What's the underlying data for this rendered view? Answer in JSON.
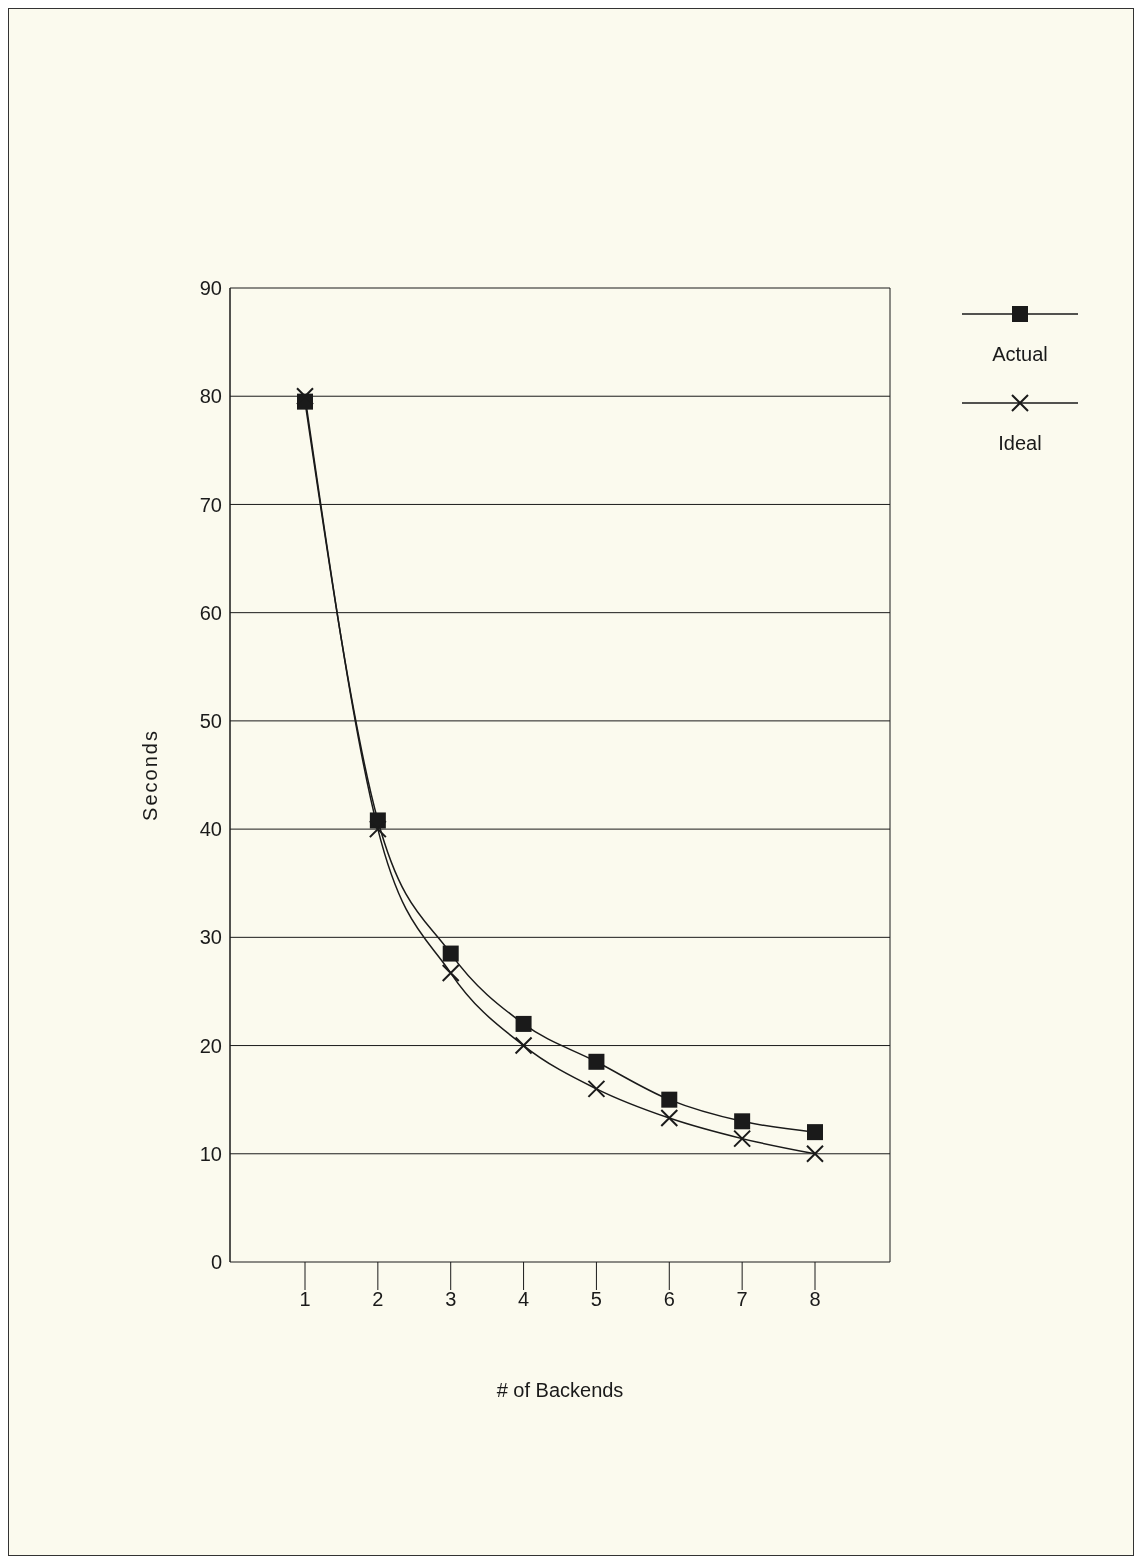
{
  "chart_data": {
    "type": "line",
    "xlabel": "# of Backends",
    "ylabel": "Seconds",
    "categories": [
      "1",
      "2",
      "3",
      "4",
      "5",
      "6",
      "7",
      "8"
    ],
    "series": [
      {
        "name": "Actual",
        "color": "#1a1a1a",
        "marker": "square",
        "values": [
          79.5,
          40.8,
          28.5,
          22,
          18.5,
          15,
          13,
          12
        ]
      },
      {
        "name": "Ideal",
        "color": "#1a1a1a",
        "marker": "cross",
        "values": [
          80,
          40,
          26.7,
          20,
          16,
          13.3,
          11.4,
          10
        ]
      }
    ],
    "ylim": [
      0,
      90
    ],
    "yticks": [
      0,
      10,
      20,
      30,
      40,
      50,
      60,
      70,
      80,
      90
    ],
    "grid": "y",
    "legend": "right",
    "line_style": "solid"
  }
}
